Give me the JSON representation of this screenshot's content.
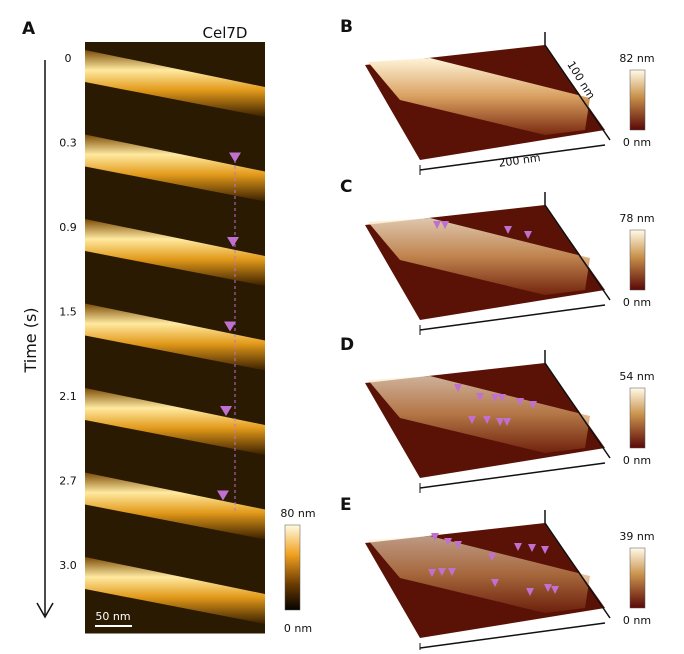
{
  "panel_a": {
    "label": "A",
    "title": "Cel7D",
    "axis_label": "Time (s)",
    "times": [
      "0",
      "0.3",
      "0.9",
      "1.5",
      "2.1",
      "2.7",
      "3.0"
    ],
    "scale_bar": "50 nm",
    "colorbar_max": "80 nm",
    "colorbar_min": "0 nm"
  },
  "panels": [
    {
      "label": "B",
      "colorbar_max": "82 nm",
      "colorbar_min": "0 nm",
      "dim_x": "200 nm",
      "dim_y": "100 nm"
    },
    {
      "label": "C",
      "colorbar_max": "78 nm",
      "colorbar_min": "0 nm"
    },
    {
      "label": "D",
      "colorbar_max": "54 nm",
      "colorbar_min": "0 nm"
    },
    {
      "label": "E",
      "colorbar_max": "39 nm",
      "colorbar_min": "0 nm"
    }
  ]
}
